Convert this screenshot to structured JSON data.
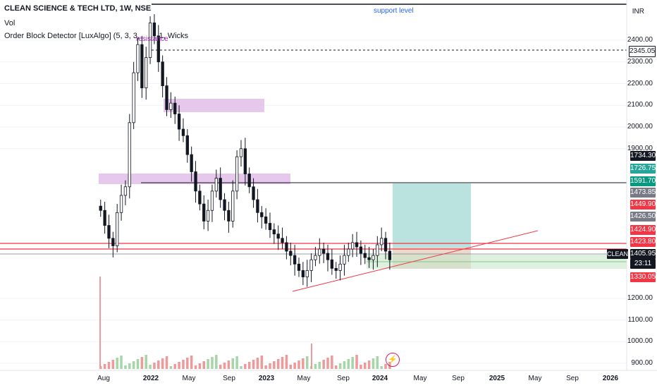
{
  "header": {
    "title": "CLEAN SCIENCE & TECH LTD, 1W, NSE",
    "indicator_vol": "Vol",
    "indicator_ob": "Order Block Detector [LuxAlgo] (5, 3, 3,    , 1, Wicks"
  },
  "currency": "INR",
  "annotations": {
    "support_level": "support level",
    "resistance": "resistance"
  },
  "symbol_tag": "CLEAN",
  "countdown": "23:11",
  "colors": {
    "up": "#26a69a",
    "down": "#ef5350",
    "candle": "#131722",
    "ob_purple": "#e1bee7",
    "tp_zone": "#b2dfdb",
    "sl_zone": "#c8e6c9",
    "red_line": "#f23645",
    "accent_blue": "#2962ff"
  },
  "price_axis": {
    "ticks": [
      "2400.00",
      "2300.00",
      "2200.00",
      "2100.00",
      "2000.00",
      "1900.00",
      "1200.00",
      "1100.00",
      "1000.00",
      "900.00"
    ],
    "tags": [
      {
        "text": "2345.05",
        "bg": "#ffffff",
        "fg": "#131722",
        "border": "#131722",
        "price": 2345.05
      },
      {
        "text": "1734.30",
        "bg": "#131722",
        "fg": "#ffffff",
        "price": 1734.3
      },
      {
        "text": "1726.75",
        "bg": "#26a69a",
        "fg": "#ffffff",
        "price": 1726.75
      },
      {
        "text": "1591.70",
        "bg": "#089981",
        "fg": "#ffffff",
        "price": 1591.7
      },
      {
        "text": "1473.85",
        "bg": "#787b86",
        "fg": "#ffffff",
        "price": 1473.85
      },
      {
        "text": "1449.90",
        "bg": "#f23645",
        "fg": "#ffffff",
        "price": 1449.9
      },
      {
        "text": "1426.50",
        "bg": "#787b86",
        "fg": "#ffffff",
        "price": 1426.5
      },
      {
        "text": "1424.90",
        "bg": "#f23645",
        "fg": "#ffffff",
        "price": 1424.9
      },
      {
        "text": "1423.80",
        "bg": "#f23645",
        "fg": "#ffffff",
        "price": 1423.8
      },
      {
        "text": "1405.95",
        "bg": "#131722",
        "fg": "#ffffff",
        "price": 1405.95
      },
      {
        "text": "1330.05",
        "bg": "#f23645",
        "fg": "#ffffff",
        "price": 1330.05
      }
    ]
  },
  "time_axis": [
    {
      "label": "Aug",
      "bold": false
    },
    {
      "label": "2022",
      "bold": true
    },
    {
      "label": "May",
      "bold": false
    },
    {
      "label": "Sep",
      "bold": false
    },
    {
      "label": "2023",
      "bold": true
    },
    {
      "label": "May",
      "bold": false
    },
    {
      "label": "Sep",
      "bold": false
    },
    {
      "label": "2024",
      "bold": true
    },
    {
      "label": "May",
      "bold": false
    },
    {
      "label": "Sep",
      "bold": false
    },
    {
      "label": "2025",
      "bold": true
    },
    {
      "label": "May",
      "bold": false
    },
    {
      "label": "Sep",
      "bold": false
    },
    {
      "label": "2026",
      "bold": true
    }
  ],
  "chart_data": {
    "type": "candlestick",
    "symbol": "CLEAN SCIENCE & TECH LTD",
    "interval": "1W",
    "exchange": "NSE",
    "ylim": [
      880,
      2560
    ],
    "levels": {
      "support": 2545,
      "dotted": 2345.05,
      "breakout": 1591.7,
      "red_upper": 1423.8,
      "red_lower": 1405.95
    },
    "closes": [
      1610,
      1540,
      1480,
      1445,
      1600,
      1680,
      1720,
      2020,
      2250,
      2380,
      2180,
      2320,
      2480,
      2420,
      2300,
      2190,
      2080,
      2110,
      2060,
      1990,
      1960,
      1870,
      1790,
      1700,
      1640,
      1560,
      1610,
      1700,
      1760,
      1660,
      1610,
      1560,
      1700,
      1860,
      1900,
      1780,
      1720,
      1660,
      1600,
      1580,
      1550,
      1520,
      1500,
      1480,
      1460,
      1420,
      1400,
      1360,
      1330,
      1300,
      1330,
      1380,
      1400,
      1430,
      1410,
      1380,
      1340,
      1330,
      1360,
      1400,
      1430,
      1460,
      1440,
      1410,
      1390,
      1380,
      1400,
      1450,
      1480,
      1420,
      1380
    ]
  }
}
